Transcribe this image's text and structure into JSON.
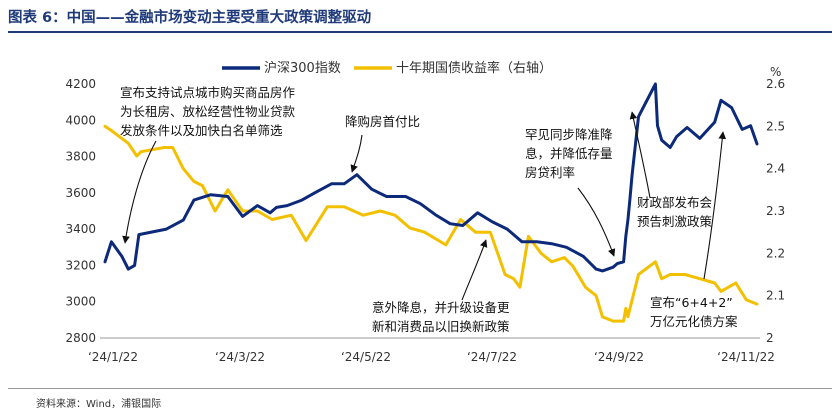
{
  "figure": {
    "title": "图表 6：中国——金融市场变动主要受重大政策调整驱动",
    "source": "资料来源：Wind，浦银国际"
  },
  "chart_data": {
    "type": "line",
    "right_axis_unit": "%",
    "legend": {
      "placement": "top-center"
    },
    "x_ticks": [
      "‘24/1/22",
      "‘24/3/22",
      "‘24/5/22",
      "‘24/7/22",
      "‘24/9/22",
      "‘24/11/22"
    ],
    "left_axis": {
      "ticks": [
        2800,
        3000,
        3200,
        3400,
        3600,
        3800,
        4000,
        4200
      ],
      "min": 2800,
      "max": 4200
    },
    "right_axis": {
      "ticks": [
        "2",
        "2.1",
        "2.2",
        "2.3",
        "2.4",
        "2.5",
        "2.6"
      ],
      "min": 2.0,
      "max": 2.6
    },
    "series": [
      {
        "name": "沪深300指数",
        "axis": "left",
        "color": "#0d2a7a",
        "points": [
          [
            "2024-01-22",
            3220
          ],
          [
            "2024-01-25",
            3330
          ],
          [
            "2024-01-30",
            3250
          ],
          [
            "2024-02-02",
            3180
          ],
          [
            "2024-02-05",
            3200
          ],
          [
            "2024-02-07",
            3370
          ],
          [
            "2024-02-20",
            3400
          ],
          [
            "2024-02-28",
            3450
          ],
          [
            "2024-03-04",
            3560
          ],
          [
            "2024-03-12",
            3590
          ],
          [
            "2024-03-20",
            3580
          ],
          [
            "2024-03-27",
            3470
          ],
          [
            "2024-04-03",
            3530
          ],
          [
            "2024-04-09",
            3490
          ],
          [
            "2024-04-12",
            3520
          ],
          [
            "2024-04-17",
            3530
          ],
          [
            "2024-04-24",
            3560
          ],
          [
            "2024-04-30",
            3600
          ],
          [
            "2024-05-08",
            3650
          ],
          [
            "2024-05-14",
            3650
          ],
          [
            "2024-05-20",
            3700
          ],
          [
            "2024-05-27",
            3620
          ],
          [
            "2024-06-03",
            3580
          ],
          [
            "2024-06-12",
            3580
          ],
          [
            "2024-06-19",
            3540
          ],
          [
            "2024-06-26",
            3480
          ],
          [
            "2024-07-03",
            3430
          ],
          [
            "2024-07-09",
            3420
          ],
          [
            "2024-07-16",
            3490
          ],
          [
            "2024-07-23",
            3440
          ],
          [
            "2024-07-30",
            3400
          ],
          [
            "2024-08-06",
            3330
          ],
          [
            "2024-08-13",
            3330
          ],
          [
            "2024-08-20",
            3320
          ],
          [
            "2024-08-27",
            3300
          ],
          [
            "2024-09-04",
            3250
          ],
          [
            "2024-09-10",
            3180
          ],
          [
            "2024-09-13",
            3170
          ],
          [
            "2024-09-18",
            3190
          ],
          [
            "2024-09-20",
            3210
          ],
          [
            "2024-09-23",
            3220
          ],
          [
            "2024-09-24",
            3360
          ],
          [
            "2024-09-25",
            3450
          ],
          [
            "2024-09-26",
            3570
          ],
          [
            "2024-09-27",
            3700
          ],
          [
            "2024-09-30",
            4020
          ],
          [
            "2024-10-08",
            4250
          ],
          [
            "2024-10-09",
            3970
          ],
          [
            "2024-10-11",
            3890
          ],
          [
            "2024-10-15",
            3850
          ],
          [
            "2024-10-18",
            3910
          ],
          [
            "2024-10-23",
            3960
          ],
          [
            "2024-10-29",
            3900
          ],
          [
            "2024-11-05",
            3990
          ],
          [
            "2024-11-08",
            4110
          ],
          [
            "2024-11-13",
            4070
          ],
          [
            "2024-11-18",
            3950
          ],
          [
            "2024-11-22",
            3970
          ],
          [
            "2024-11-25",
            3870
          ]
        ]
      },
      {
        "name": "十年期国债收益率（右轴）",
        "axis": "right",
        "color": "#f3c000",
        "points": [
          [
            "2024-01-22",
            2.5
          ],
          [
            "2024-01-25",
            2.49
          ],
          [
            "2024-02-02",
            2.46
          ],
          [
            "2024-02-06",
            2.43
          ],
          [
            "2024-02-08",
            2.44
          ],
          [
            "2024-02-19",
            2.45
          ],
          [
            "2024-02-23",
            2.45
          ],
          [
            "2024-02-28",
            2.4
          ],
          [
            "2024-03-04",
            2.37
          ],
          [
            "2024-03-08",
            2.36
          ],
          [
            "2024-03-14",
            2.3
          ],
          [
            "2024-03-20",
            2.35
          ],
          [
            "2024-03-27",
            2.3
          ],
          [
            "2024-04-03",
            2.3
          ],
          [
            "2024-04-10",
            2.28
          ],
          [
            "2024-04-19",
            2.29
          ],
          [
            "2024-04-26",
            2.23
          ],
          [
            "2024-05-06",
            2.31
          ],
          [
            "2024-05-14",
            2.31
          ],
          [
            "2024-05-23",
            2.29
          ],
          [
            "2024-05-31",
            2.3
          ],
          [
            "2024-06-07",
            2.29
          ],
          [
            "2024-06-14",
            2.26
          ],
          [
            "2024-06-21",
            2.25
          ],
          [
            "2024-07-01",
            2.22
          ],
          [
            "2024-07-08",
            2.28
          ],
          [
            "2024-07-15",
            2.25
          ],
          [
            "2024-07-22",
            2.25
          ],
          [
            "2024-07-29",
            2.15
          ],
          [
            "2024-08-02",
            2.14
          ],
          [
            "2024-08-05",
            2.12
          ],
          [
            "2024-08-09",
            2.24
          ],
          [
            "2024-08-15",
            2.2
          ],
          [
            "2024-08-20",
            2.18
          ],
          [
            "2024-08-26",
            2.19
          ],
          [
            "2024-08-30",
            2.17
          ],
          [
            "2024-09-05",
            2.12
          ],
          [
            "2024-09-10",
            2.1
          ],
          [
            "2024-09-13",
            2.05
          ],
          [
            "2024-09-18",
            2.04
          ],
          [
            "2024-09-23",
            2.04
          ],
          [
            "2024-09-24",
            2.07
          ],
          [
            "2024-09-25",
            2.05
          ],
          [
            "2024-09-30",
            2.15
          ],
          [
            "2024-10-08",
            2.18
          ],
          [
            "2024-10-11",
            2.14
          ],
          [
            "2024-10-15",
            2.15
          ],
          [
            "2024-10-22",
            2.15
          ],
          [
            "2024-10-29",
            2.14
          ],
          [
            "2024-11-05",
            2.13
          ],
          [
            "2024-11-08",
            2.11
          ],
          [
            "2024-11-15",
            2.13
          ],
          [
            "2024-11-20",
            2.09
          ],
          [
            "2024-11-25",
            2.08
          ]
        ]
      }
    ],
    "annotations": [
      {
        "id": "ann-1",
        "lines": [
          "宣布支持试点城市购买商品房作",
          "为长租房、放松经营性物业贷款",
          "发放条件以及加快白名单筛选"
        ]
      },
      {
        "id": "ann-2",
        "lines": [
          "降购房首付比"
        ]
      },
      {
        "id": "ann-3",
        "lines": [
          "罕见同步降准降",
          "息，并降低存量",
          "房贷利率"
        ]
      },
      {
        "id": "ann-4",
        "lines": [
          "财政部发布会",
          "预告刺激政策"
        ]
      },
      {
        "id": "ann-5",
        "lines": [
          "意外降息，并升级设备更",
          "新和消费品以旧换新政策"
        ]
      },
      {
        "id": "ann-6",
        "lines": [
          "宣布“6+4+2”",
          "万亿元化债方案"
        ]
      }
    ]
  }
}
